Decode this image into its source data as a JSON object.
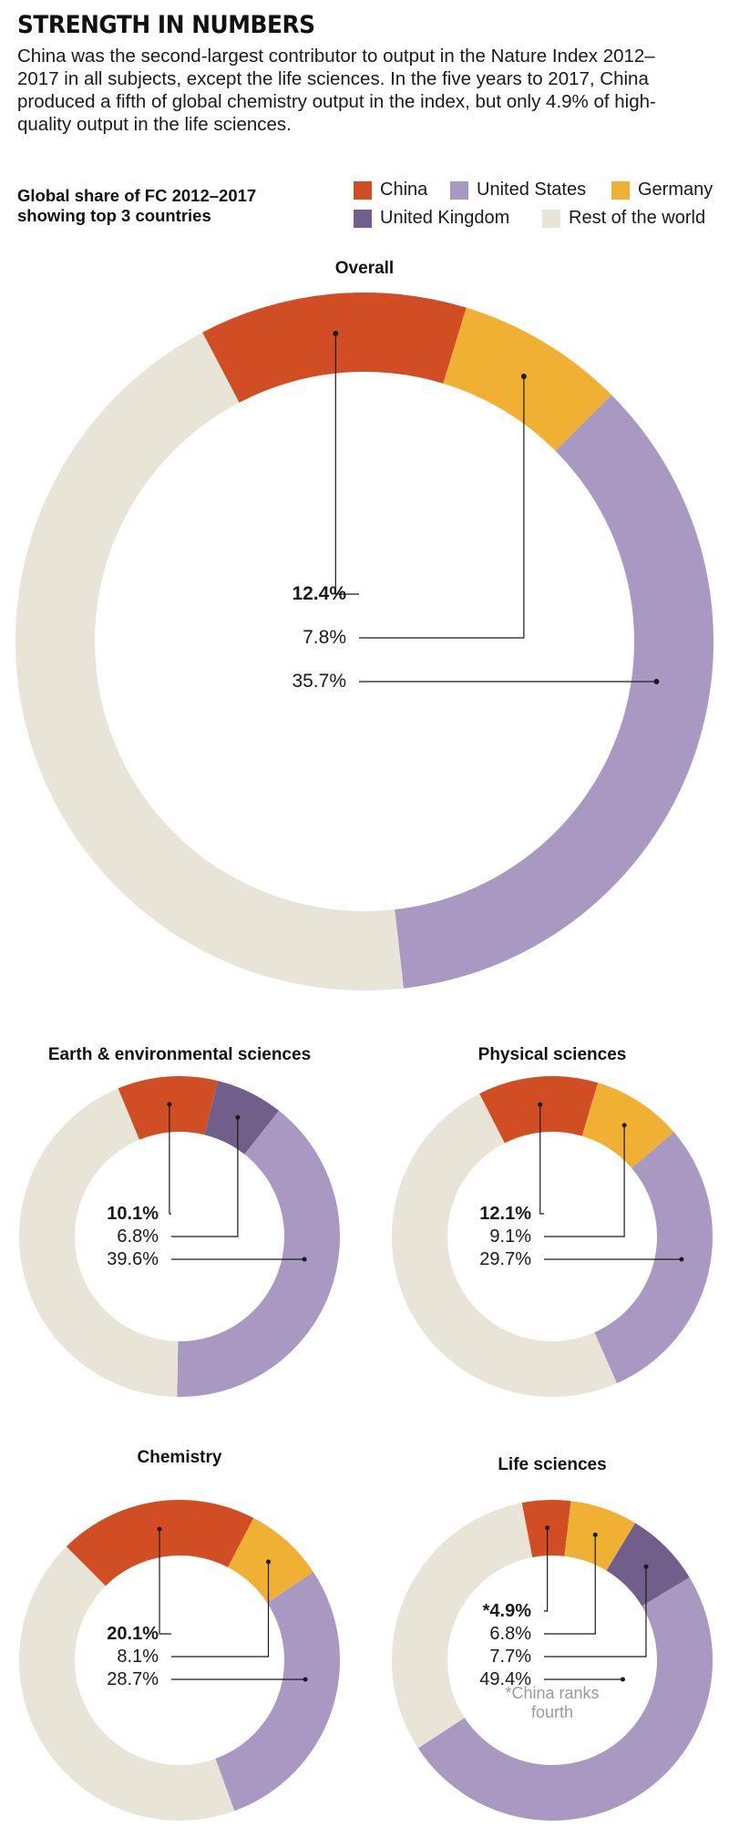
{
  "title": "STRENGTH IN NUMBERS",
  "subtitle": "China was the second-largest contributor to output in the Nature Index 2012–2017 in all subjects, except the life sciences. In the five years to 2017, China produced a fifth of global chemistry output in the index, but only 4.9% of high-quality output in the life sciences.",
  "chart_subtitle": "Global share of FC 2012–2017 showing top 3 countries",
  "legend": [
    {
      "name": "China",
      "color": "#d14e24"
    },
    {
      "name": "United States",
      "color": "#a999c2"
    },
    {
      "name": "Germany",
      "color": "#f0b034"
    },
    {
      "name": "United Kingdom",
      "color": "#715e8b"
    },
    {
      "name": "Rest of the world",
      "color": "#e8e5d8"
    }
  ],
  "chart_data": [
    {
      "type": "pie",
      "title": "Overall",
      "segments": [
        {
          "country": "China",
          "value": 12.4,
          "label": "12.4%",
          "bold": true
        },
        {
          "country": "Germany",
          "value": 7.8,
          "label": "7.8%"
        },
        {
          "country": "United States",
          "value": 35.7,
          "label": "35.7%"
        },
        {
          "country": "Rest of the world",
          "value": 44.1
        }
      ]
    },
    {
      "type": "pie",
      "title": "Earth & environmental sciences",
      "segments": [
        {
          "country": "China",
          "value": 10.1,
          "label": "10.1%",
          "bold": true
        },
        {
          "country": "United Kingdom",
          "value": 6.8,
          "label": "6.8%"
        },
        {
          "country": "United States",
          "value": 39.6,
          "label": "39.6%"
        },
        {
          "country": "Rest of the world",
          "value": 43.5
        }
      ]
    },
    {
      "type": "pie",
      "title": "Physical sciences",
      "segments": [
        {
          "country": "China",
          "value": 12.1,
          "label": "12.1%",
          "bold": true
        },
        {
          "country": "Germany",
          "value": 9.1,
          "label": "9.1%"
        },
        {
          "country": "United States",
          "value": 29.7,
          "label": "29.7%"
        },
        {
          "country": "Rest of the world",
          "value": 49.1
        }
      ]
    },
    {
      "type": "pie",
      "title": "Chemistry",
      "segments": [
        {
          "country": "China",
          "value": 20.1,
          "label": "20.1%",
          "bold": true
        },
        {
          "country": "Germany",
          "value": 8.1,
          "label": "8.1%"
        },
        {
          "country": "United States",
          "value": 28.7,
          "label": "28.7%"
        },
        {
          "country": "Rest of the world",
          "value": 43.1
        }
      ]
    },
    {
      "type": "pie",
      "title": "Life sciences",
      "note": "*China ranks fourth",
      "segments": [
        {
          "country": "China",
          "value": 4.9,
          "label": "*4.9%",
          "bold": true
        },
        {
          "country": "Germany",
          "value": 6.8,
          "label": "6.8%"
        },
        {
          "country": "United Kingdom",
          "value": 7.7,
          "label": "7.7%"
        },
        {
          "country": "United States",
          "value": 49.4,
          "label": "49.4%"
        },
        {
          "country": "Rest of the world",
          "value": 31.2
        }
      ]
    }
  ]
}
